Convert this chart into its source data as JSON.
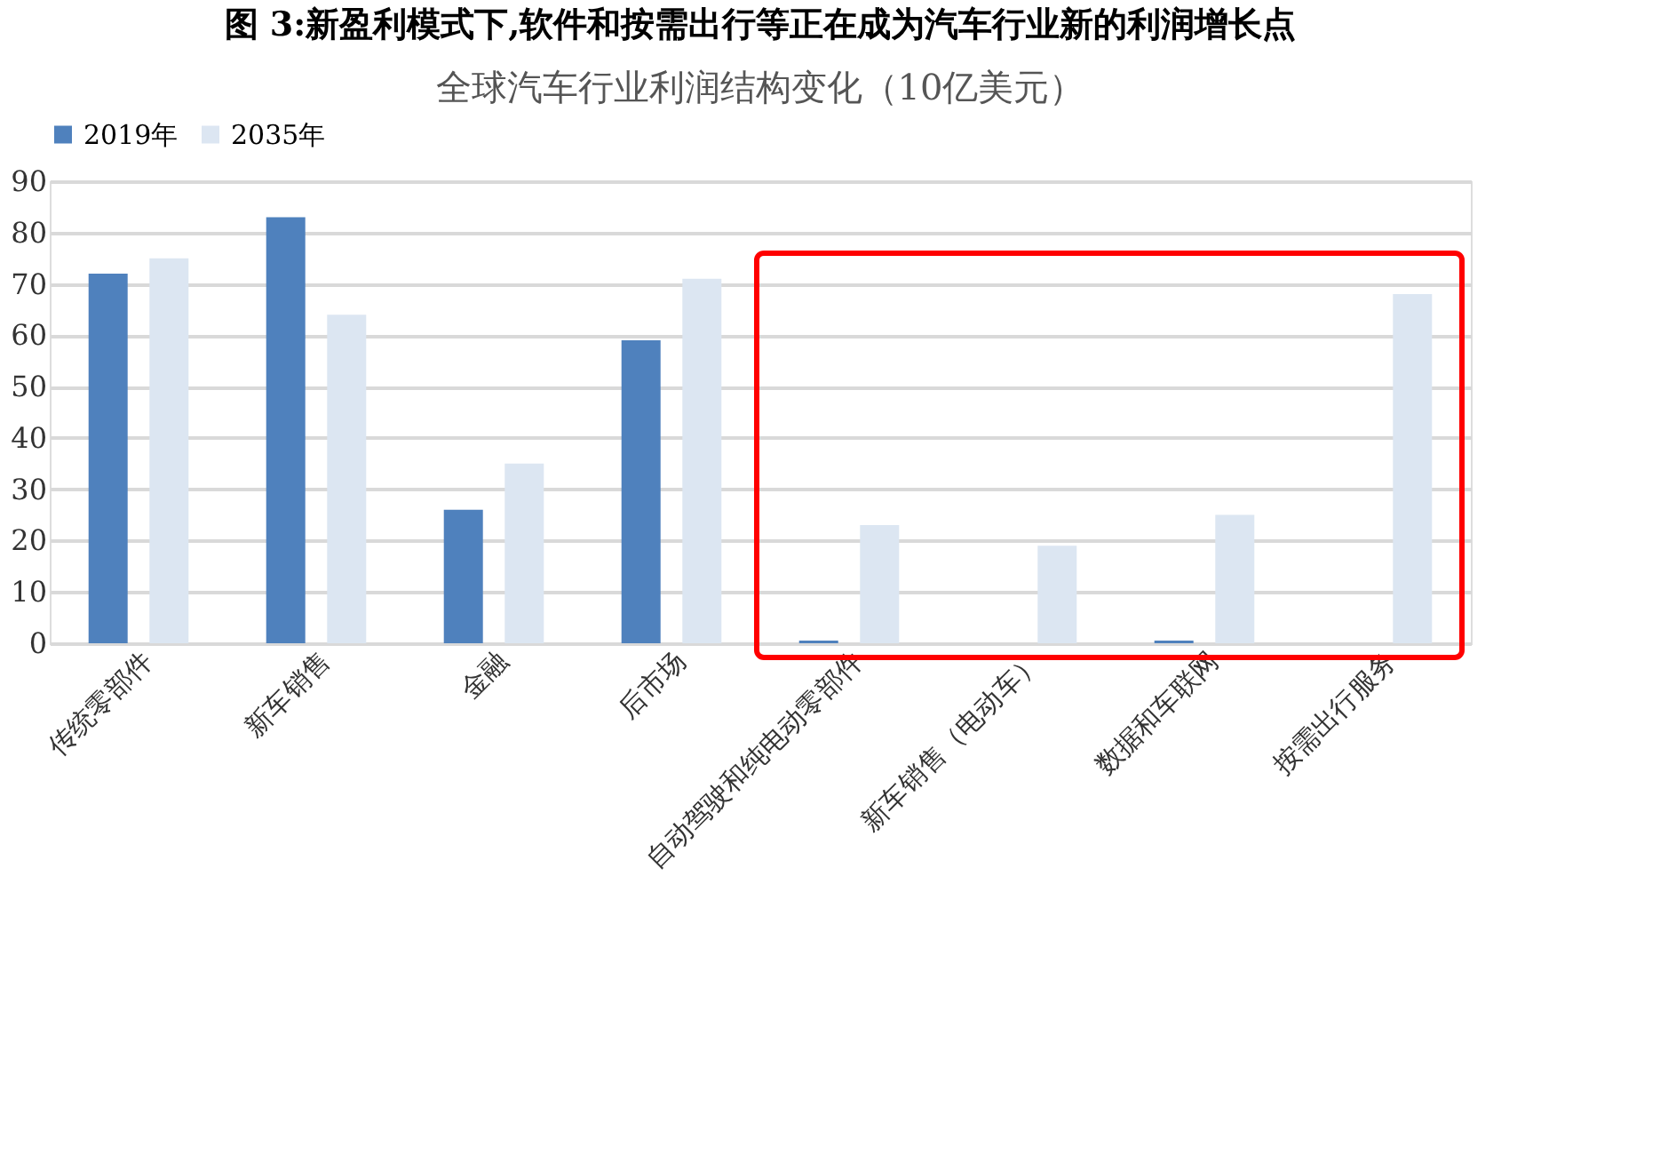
{
  "chart_data": {
    "type": "bar",
    "title": "图  3:新盈利模式下,软件和按需出行等正在成为汽车行业新的利润增长点",
    "subtitle": "全球汽车行业利润结构变化（10亿美元）",
    "categories": [
      "传统零部件",
      "新车销售",
      "金融",
      "后市场",
      "自动驾驶和纯电动零部件",
      "新车销售（电动车）",
      "数据和车联网",
      "按需出行服务"
    ],
    "series": [
      {
        "name": "2019年",
        "color": "#4f81bd",
        "values": [
          72,
          83,
          26,
          59,
          0.5,
          0,
          0.5,
          0
        ]
      },
      {
        "name": "2035年",
        "color": "#dce6f2",
        "values": [
          75,
          64,
          35,
          71,
          23,
          19,
          25,
          68
        ]
      }
    ],
    "ylim": [
      0,
      90
    ],
    "yticks": [
      0,
      10,
      20,
      30,
      40,
      50,
      60,
      70,
      80,
      90
    ],
    "grid": "y",
    "legend": "top"
  }
}
